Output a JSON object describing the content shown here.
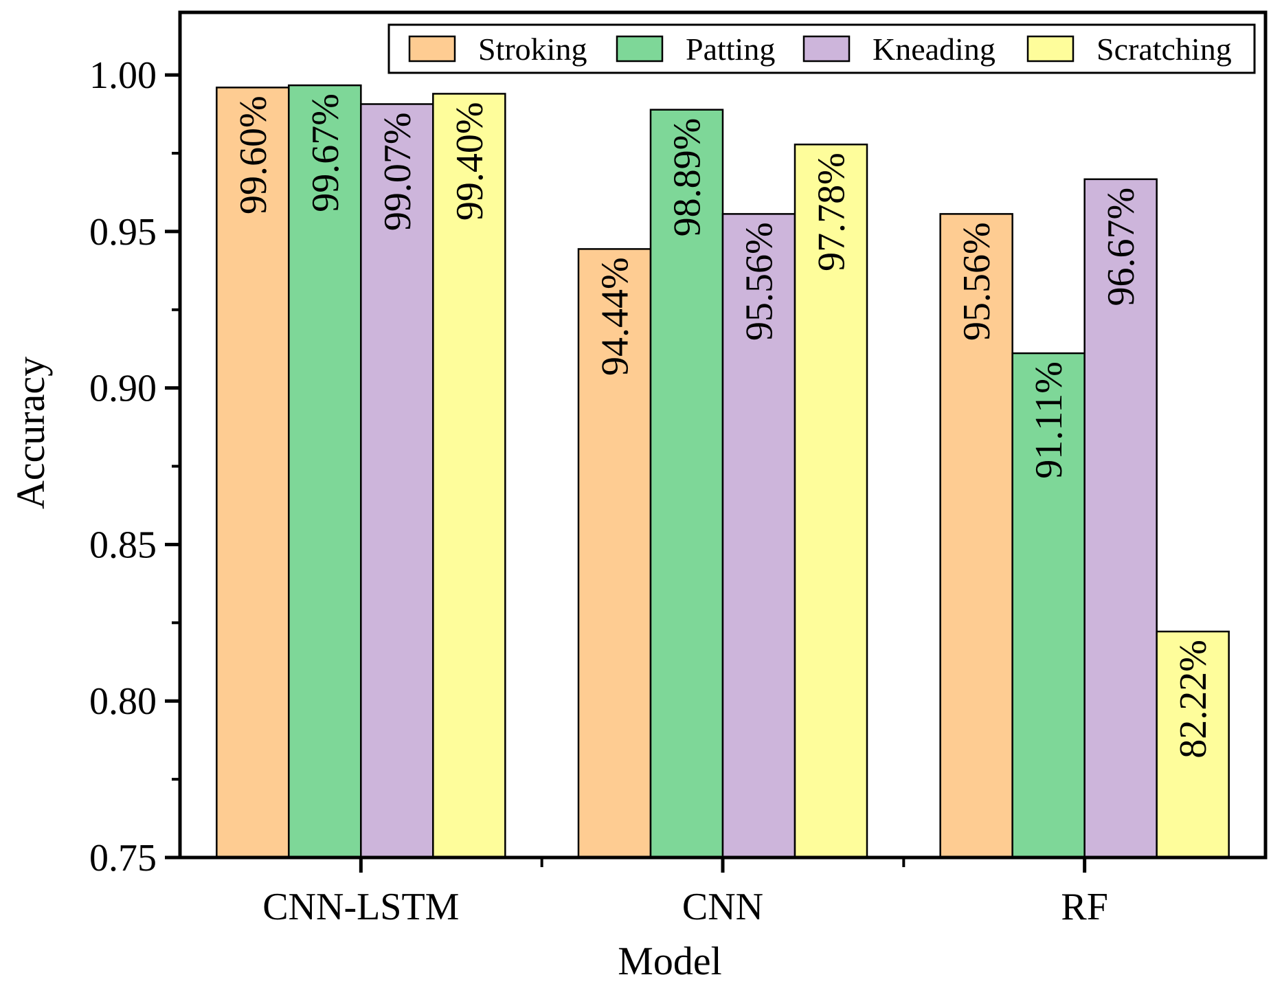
{
  "chart_data": {
    "type": "bar",
    "title": "",
    "xlabel": "Model",
    "ylabel": "Accuracy",
    "categories": [
      "CNN-LSTM",
      "CNN",
      "RF"
    ],
    "ylim": [
      0.75,
      1.02
    ],
    "yticks": [
      0.75,
      0.8,
      0.85,
      0.9,
      0.95,
      1.0
    ],
    "ytick_labels": [
      "0.75",
      "0.80",
      "0.85",
      "0.90",
      "0.95",
      "1.00"
    ],
    "legend_position": "top-right",
    "series": [
      {
        "name": "Stroking",
        "color": "#FECC92",
        "values": [
          0.996,
          0.9444,
          0.9556
        ],
        "labels": [
          "99.60%",
          "94.44%",
          "95.56%"
        ]
      },
      {
        "name": "Patting",
        "color": "#7ED798",
        "values": [
          0.9967,
          0.9889,
          0.9111
        ],
        "labels": [
          "99.67%",
          "98.89%",
          "91.11%"
        ]
      },
      {
        "name": "Kneading",
        "color": "#CDB5DB",
        "values": [
          0.9907,
          0.9556,
          0.9667
        ],
        "labels": [
          "99.07%",
          "95.56%",
          "96.67%"
        ]
      },
      {
        "name": "Scratching",
        "color": "#FEFD9B",
        "values": [
          0.994,
          0.9778,
          0.8222
        ],
        "labels": [
          "99.40%",
          "97.78%",
          "82.22%"
        ]
      }
    ]
  }
}
